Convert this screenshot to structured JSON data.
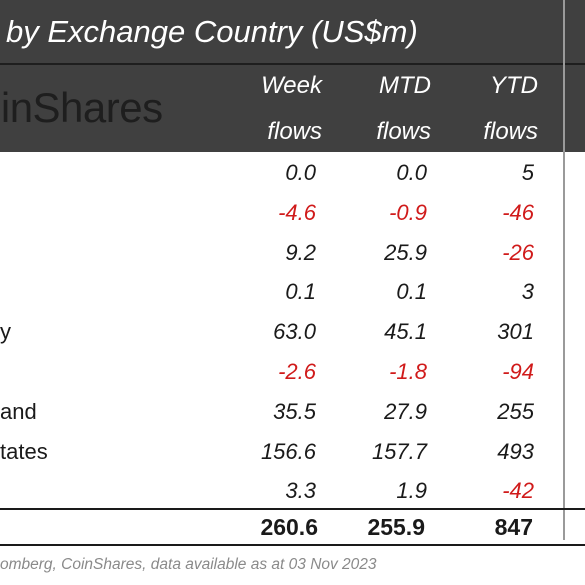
{
  "title": "by Exchange Country (US$m)",
  "logo_text": "oinShares",
  "columns": [
    {
      "line1": "Week",
      "line2": "flows"
    },
    {
      "line1": "MTD",
      "line2": "flows"
    },
    {
      "line1": "YTD",
      "line2": "flows"
    }
  ],
  "rows": [
    {
      "country": "",
      "week": "0.0",
      "mtd": "0.0",
      "ytd": "5",
      "neg": [
        false,
        false,
        false
      ]
    },
    {
      "country": "",
      "week": "-4.6",
      "mtd": "-0.9",
      "ytd": "-46",
      "neg": [
        true,
        true,
        true
      ]
    },
    {
      "country": "",
      "week": "9.2",
      "mtd": "25.9",
      "ytd": "-26",
      "neg": [
        false,
        false,
        true
      ]
    },
    {
      "country": "",
      "week": "0.1",
      "mtd": "0.1",
      "ytd": "3",
      "neg": [
        false,
        false,
        false
      ]
    },
    {
      "country": "y",
      "week": "63.0",
      "mtd": "45.1",
      "ytd": "301",
      "neg": [
        false,
        false,
        false
      ]
    },
    {
      "country": "",
      "week": "-2.6",
      "mtd": "-1.8",
      "ytd": "-94",
      "neg": [
        true,
        true,
        true
      ]
    },
    {
      "country": "and",
      "week": "35.5",
      "mtd": "27.9",
      "ytd": "255",
      "neg": [
        false,
        false,
        false
      ]
    },
    {
      "country": "tates",
      "week": "156.6",
      "mtd": "157.7",
      "ytd": "493",
      "neg": [
        false,
        false,
        false
      ]
    },
    {
      "country": "",
      "week": "3.3",
      "mtd": "1.9",
      "ytd": "-42",
      "neg": [
        false,
        false,
        true
      ]
    }
  ],
  "totals": {
    "week": "260.6",
    "mtd": "255.9",
    "ytd": "847"
  },
  "source": "omberg, CoinShares, data available as at 03 Nov 2023",
  "colors": {
    "header_bg": "#404040",
    "negative": "#d01a1a",
    "source_text": "#8a8a8a"
  },
  "chart_data": {
    "type": "table",
    "title": "by Exchange Country (US$m)",
    "columns": [
      "Week flows",
      "MTD flows",
      "YTD flows"
    ],
    "rows": [
      {
        "label": "",
        "values": [
          0.0,
          0.0,
          5
        ]
      },
      {
        "label": "",
        "values": [
          -4.6,
          -0.9,
          -46
        ]
      },
      {
        "label": "",
        "values": [
          9.2,
          25.9,
          -26
        ]
      },
      {
        "label": "",
        "values": [
          0.1,
          0.1,
          3
        ]
      },
      {
        "label": "y",
        "values": [
          63.0,
          45.1,
          301
        ]
      },
      {
        "label": "",
        "values": [
          -2.6,
          -1.8,
          -94
        ]
      },
      {
        "label": "and",
        "values": [
          35.5,
          27.9,
          255
        ]
      },
      {
        "label": "tates",
        "values": [
          156.6,
          157.7,
          493
        ]
      },
      {
        "label": "",
        "values": [
          3.3,
          1.9,
          -42
        ]
      }
    ],
    "totals": [
      260.6,
      255.9,
      847
    ]
  }
}
